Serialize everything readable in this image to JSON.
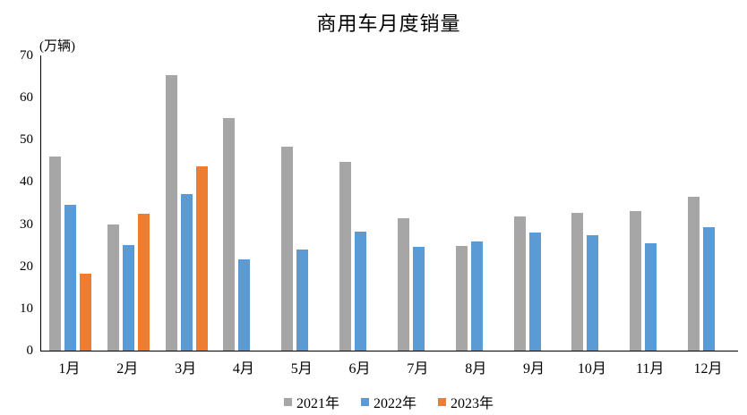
{
  "title": "商用车月度销量",
  "chart_data": {
    "type": "bar",
    "title": "商用车月度销量",
    "ylabel": "(万辆)",
    "xlabel": "",
    "categories": [
      "1月",
      "2月",
      "3月",
      "4月",
      "5月",
      "6月",
      "7月",
      "8月",
      "9月",
      "10月",
      "11月",
      "12月"
    ],
    "series": [
      {
        "name": "2021年",
        "color": "#A6A6A6",
        "values": [
          46.0,
          29.9,
          65.3,
          55.1,
          48.3,
          44.8,
          31.4,
          24.9,
          31.9,
          32.7,
          33.2,
          36.5
        ]
      },
      {
        "name": "2022年",
        "color": "#5B9BD5",
        "values": [
          34.5,
          25.0,
          37.1,
          21.6,
          24.0,
          28.3,
          24.7,
          25.9,
          28.0,
          27.3,
          25.4,
          29.3
        ]
      },
      {
        "name": "2023年",
        "color": "#ED7D31",
        "values": [
          18.3,
          32.4,
          43.7,
          null,
          null,
          null,
          null,
          null,
          null,
          null,
          null,
          null
        ]
      }
    ],
    "ylim": [
      0,
      70
    ],
    "yticks": [
      0,
      10,
      20,
      30,
      40,
      50,
      60,
      70
    ],
    "grid": false,
    "legend_position": "bottom",
    "axis_color": "#000000",
    "background_color": "#ffffff"
  }
}
